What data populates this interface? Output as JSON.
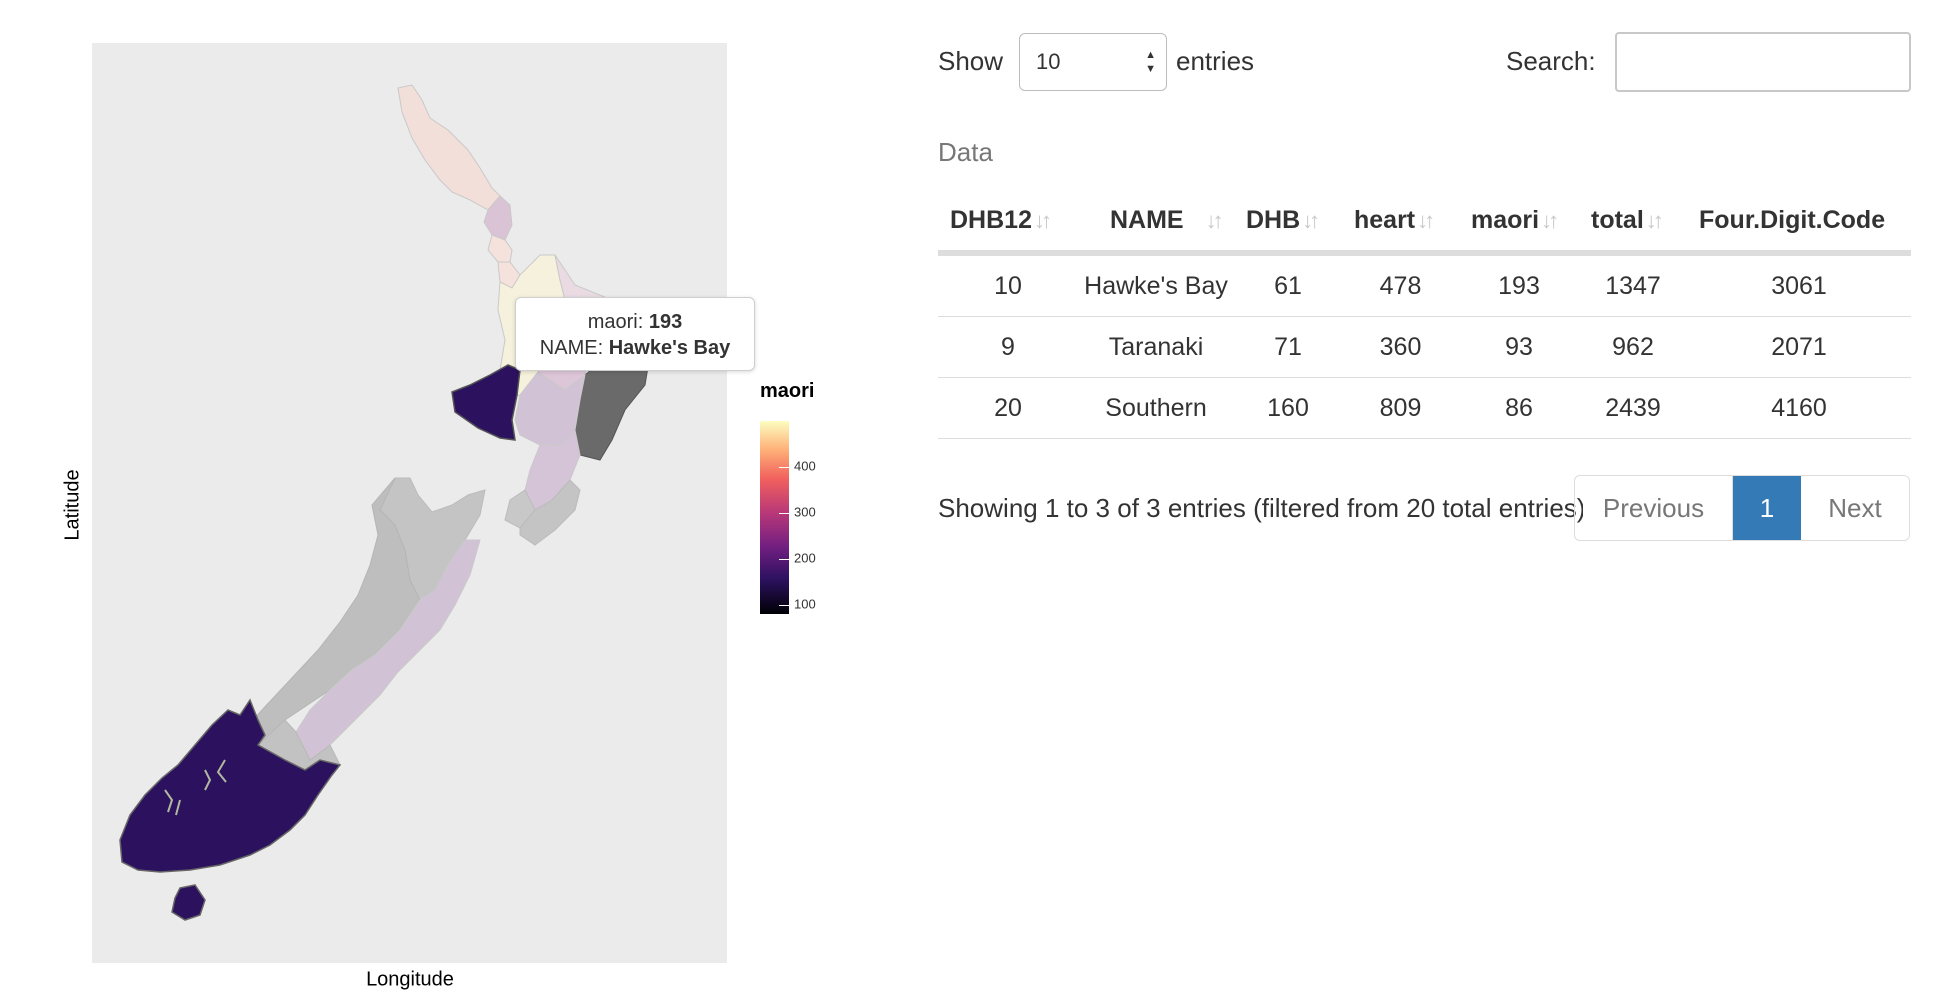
{
  "map": {
    "x_axis_label": "Longitude",
    "y_axis_label": "Latitude",
    "tooltip": {
      "field1_label": "maori:",
      "field1_value": "193",
      "field2_label": "NAME:",
      "field2_value": "Hawke's Bay"
    },
    "legend": {
      "title": "maori",
      "ticks": [
        "400",
        "300",
        "200",
        "100"
      ],
      "color_low": "#000004",
      "color_high": "#fcfdbf"
    },
    "colors": {
      "panel_background": "#ebebeb",
      "highlighted_region": "#2c115f",
      "selected_region": "#6a6a6a",
      "unselected_region": "#bdbdbd"
    }
  },
  "table_controls": {
    "show_label": "Show",
    "page_length": "10",
    "entries_label": "entries",
    "search_label": "Search:",
    "search_value": ""
  },
  "table": {
    "caption": "Data",
    "columns": [
      "DHB12",
      "NAME",
      "DHB",
      "heart",
      "maori",
      "total",
      "Four.Digit.Code"
    ],
    "rows": [
      [
        "10",
        "Hawke's Bay",
        "61",
        "478",
        "193",
        "1347",
        "3061"
      ],
      [
        "9",
        "Taranaki",
        "71",
        "360",
        "93",
        "962",
        "2071"
      ],
      [
        "20",
        "Southern",
        "160",
        "809",
        "86",
        "2439",
        "4160"
      ]
    ]
  },
  "footer": {
    "info": "Showing 1 to 3 of 3 entries (filtered from 20 total entries)",
    "previous_label": "Previous",
    "current_page": "1",
    "next_label": "Next",
    "active_page_color": "#337ab7"
  }
}
